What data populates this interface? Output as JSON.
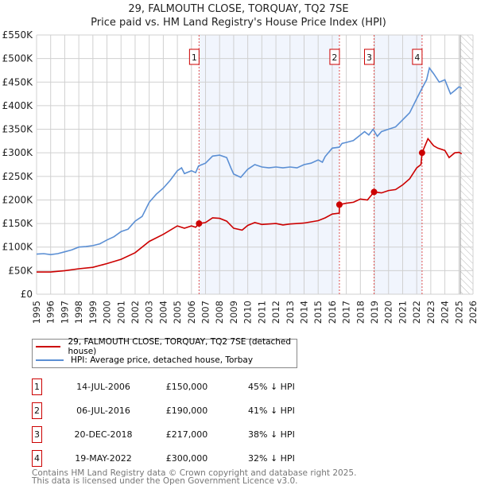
{
  "chart_data": {
    "type": "line",
    "title": "29, FALMOUTH CLOSE, TORQUAY, TQ2 7SE",
    "subtitle": "Price paid vs. HM Land Registry's House Price Index (HPI)",
    "xlim": [
      1995,
      2026
    ],
    "ylim": [
      0,
      550000
    ],
    "x_ticks": [
      "1995",
      "1996",
      "1997",
      "1998",
      "1999",
      "2000",
      "2001",
      "2002",
      "2003",
      "2004",
      "2005",
      "2006",
      "2007",
      "2008",
      "2009",
      "2010",
      "2011",
      "2012",
      "2013",
      "2014",
      "2015",
      "2016",
      "2017",
      "2018",
      "2019",
      "2020",
      "2021",
      "2022",
      "2023",
      "2024",
      "2025",
      "2026"
    ],
    "y_ticks": [
      {
        "v": 0,
        "label": "£0"
      },
      {
        "v": 50000,
        "label": "£50K"
      },
      {
        "v": 100000,
        "label": "£100K"
      },
      {
        "v": 150000,
        "label": "£150K"
      },
      {
        "v": 200000,
        "label": "£200K"
      },
      {
        "v": 250000,
        "label": "£250K"
      },
      {
        "v": 300000,
        "label": "£300K"
      },
      {
        "v": 350000,
        "label": "£350K"
      },
      {
        "v": 400000,
        "label": "£400K"
      },
      {
        "v": 450000,
        "label": "£450K"
      },
      {
        "v": 500000,
        "label": "£500K"
      },
      {
        "v": 550000,
        "label": "£550K"
      }
    ],
    "grid": true,
    "shaded_periods": [
      [
        2006.54,
        2016.51
      ],
      [
        2018.97,
        2022.38
      ]
    ],
    "forecast_hatch_from": 2025.1,
    "series": [
      {
        "name": "29, FALMOUTH CLOSE, TORQUAY, TQ2 7SE (detached house)",
        "color": "#cc0000",
        "x": [
          1995,
          1996,
          1997,
          1998,
          1999,
          2000,
          2001,
          2002,
          2003,
          2004,
          2005,
          2005.5,
          2006,
          2006.3,
          2006.54,
          2007,
          2007.5,
          2008,
          2008.5,
          2009,
          2009.6,
          2010,
          2010.5,
          2011,
          2012,
          2012.5,
          2013,
          2014,
          2015,
          2015.5,
          2016,
          2016.5,
          2016.51,
          2017,
          2017.5,
          2018,
          2018.5,
          2018.97,
          2019.5,
          2020,
          2020.5,
          2021,
          2021.5,
          2022,
          2022.3,
          2022.38,
          2022.8,
          2023.2,
          2023.5,
          2024,
          2024.3,
          2024.7,
          2025,
          2025.2
        ],
        "y": [
          47000,
          47000,
          50000,
          54000,
          57000,
          65000,
          74000,
          88000,
          112000,
          127000,
          145000,
          140000,
          145000,
          142000,
          150000,
          152000,
          162000,
          161000,
          155000,
          140000,
          136000,
          146000,
          152000,
          148000,
          150000,
          147000,
          149000,
          151000,
          156000,
          162000,
          170000,
          172000,
          190000,
          193000,
          195000,
          202000,
          200000,
          217000,
          215000,
          220000,
          222000,
          232000,
          245000,
          268000,
          275000,
          300000,
          330000,
          315000,
          310000,
          305000,
          290000,
          300000,
          301000,
          298000
        ]
      },
      {
        "name": "HPI: Average price, detached house, Torbay",
        "color": "#5b8fd4",
        "x": [
          1995,
          1995.5,
          1996,
          1996.5,
          1997,
          1997.5,
          1998,
          1998.5,
          1999,
          1999.5,
          2000,
          2000.5,
          2001,
          2001.5,
          2002,
          2002.5,
          2003,
          2003.5,
          2004,
          2004.5,
          2005,
          2005.3,
          2005.5,
          2006,
          2006.3,
          2006.5,
          2007,
          2007.5,
          2008,
          2008.5,
          2008.8,
          2009,
          2009.5,
          2010,
          2010.5,
          2011,
          2011.5,
          2012,
          2012.5,
          2013,
          2013.5,
          2014,
          2014.5,
          2015,
          2015.3,
          2015.5,
          2016,
          2016.5,
          2016.7,
          2017,
          2017.5,
          2018,
          2018.3,
          2018.6,
          2018.9,
          2019.2,
          2019.5,
          2020,
          2020.5,
          2021,
          2021.5,
          2022,
          2022.4,
          2022.7,
          2022.9,
          2023.2,
          2023.6,
          2024,
          2024.2,
          2024.4,
          2024.7,
          2025,
          2025.2
        ],
        "y": [
          85000,
          86000,
          84000,
          86000,
          90000,
          94000,
          100000,
          101000,
          103000,
          107000,
          115000,
          122000,
          133000,
          138000,
          155000,
          165000,
          195000,
          212000,
          225000,
          242000,
          262000,
          268000,
          256000,
          262000,
          258000,
          272000,
          278000,
          293000,
          295000,
          290000,
          268000,
          255000,
          248000,
          265000,
          275000,
          270000,
          268000,
          270000,
          268000,
          270000,
          268000,
          275000,
          278000,
          285000,
          280000,
          292000,
          310000,
          312000,
          320000,
          322000,
          326000,
          338000,
          345000,
          338000,
          350000,
          335000,
          345000,
          350000,
          355000,
          370000,
          385000,
          415000,
          438000,
          455000,
          480000,
          468000,
          450000,
          455000,
          440000,
          425000,
          432000,
          440000,
          437000
        ]
      }
    ],
    "sales": [
      {
        "n": "1",
        "x": 2006.54,
        "y": 150000,
        "date": "14-JUL-2006",
        "price": "£150,000",
        "hpi": "45% ↓ HPI"
      },
      {
        "n": "2",
        "x": 2016.51,
        "y": 190000,
        "date": "06-JUL-2016",
        "price": "£190,000",
        "hpi": "41% ↓ HPI"
      },
      {
        "n": "3",
        "x": 2018.97,
        "y": 217000,
        "date": "20-DEC-2018",
        "price": "£217,000",
        "hpi": "38% ↓ HPI"
      },
      {
        "n": "4",
        "x": 2022.38,
        "y": 300000,
        "date": "19-MAY-2022",
        "price": "£300,000",
        "hpi": "32% ↓ HPI"
      }
    ]
  },
  "footer": {
    "line1": "Contains HM Land Registry data © Crown copyright and database right 2025.",
    "line2": "This data is licensed under the Open Government Licence v3.0."
  }
}
